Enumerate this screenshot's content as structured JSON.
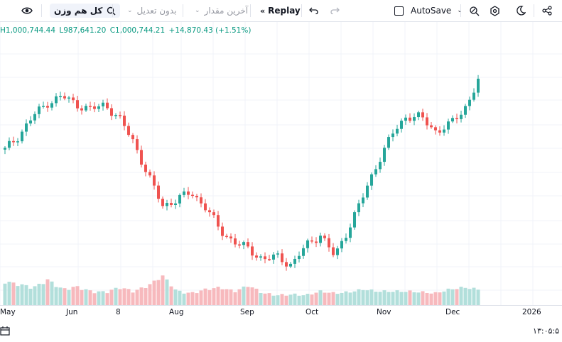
{
  "toolbar": {
    "eye_icon": "eye-icon",
    "compare_label": "کل هم وزن",
    "adjust_label": "بدون تعدیل",
    "value_label": "آخرین مقدار",
    "replay_label": "Replay",
    "autosave_label": "AutoSave",
    "icons": [
      "undo-icon",
      "redo-icon",
      "replay-icon",
      "magic-icon",
      "settings-icon",
      "moon-icon",
      "share-icon"
    ]
  },
  "ohlc": {
    "h": "H1,000,744.44",
    "l": "L987,641.20",
    "c": "C1,000,744.21",
    "change": "+14,870.43 (+1.51%)"
  },
  "time_axis": {
    "labels": [
      "May",
      "Jun",
      "8",
      "Aug",
      "Sep",
      "Oct",
      "Nov",
      "Dec",
      "2026"
    ]
  },
  "status": {
    "time": "۱۳:۰۵:۵"
  },
  "colors": {
    "up": "#26a69a",
    "down": "#ef5350",
    "up_volume": "#b2dfdb",
    "down_volume": "#f7b9bd",
    "ohlc_text": "#089981"
  },
  "chart_data": {
    "type": "candlestick",
    "x_labels": [
      "May",
      "Jun",
      "8",
      "Aug",
      "Sep",
      "Oct",
      "Nov",
      "Dec",
      "2026"
    ],
    "close_path": [
      34,
      42,
      52,
      59,
      62,
      58,
      55,
      58,
      50,
      38,
      20,
      5,
      8,
      12,
      4,
      -8,
      -14,
      -18,
      -23,
      -22,
      -26,
      -16,
      -10,
      -22,
      -6,
      10,
      28,
      42,
      52,
      51,
      44,
      47,
      55,
      70
    ],
    "volume": [
      55,
      48,
      40,
      60,
      35,
      42,
      30,
      28,
      40,
      30,
      45,
      70,
      30,
      25,
      35,
      40,
      30,
      45,
      25,
      20,
      22,
      20,
      30,
      25,
      28,
      35,
      30,
      30,
      30,
      28,
      25,
      35,
      40,
      35
    ]
  }
}
